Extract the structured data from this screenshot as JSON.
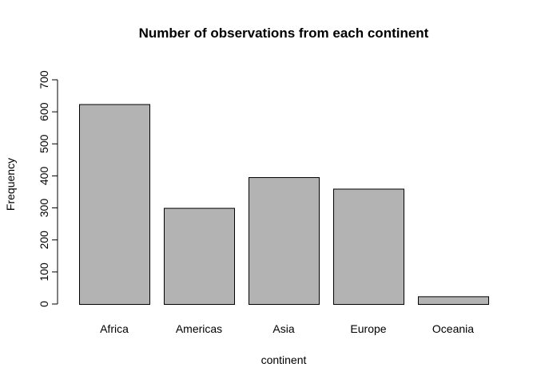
{
  "chart_data": {
    "type": "bar",
    "title": "Number of observations from each continent",
    "xlabel": "continent",
    "ylabel": "Frequency",
    "categories": [
      "Africa",
      "Americas",
      "Asia",
      "Europe",
      "Oceania"
    ],
    "values": [
      624,
      300,
      396,
      360,
      24
    ],
    "ylim": [
      0,
      700
    ],
    "yticks": [
      0,
      100,
      200,
      300,
      400,
      500,
      600,
      700
    ],
    "ytick_labels": [
      "0",
      "100",
      "200",
      "300",
      "400",
      "500",
      "600",
      "700"
    ],
    "grid": false,
    "bar_color": "#b3b3b3",
    "bar_border_color": "#000000"
  }
}
